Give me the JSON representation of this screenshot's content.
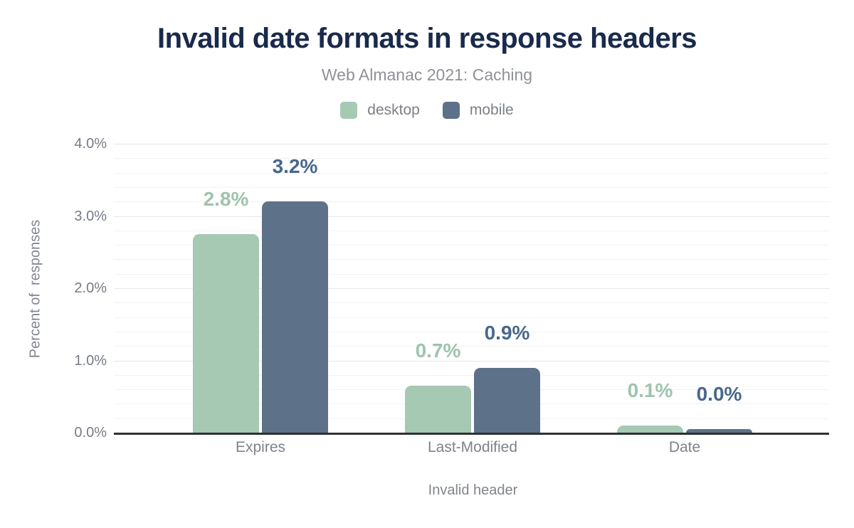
{
  "chart_data": {
    "type": "bar",
    "title": "Invalid date formats in response headers",
    "subtitle": "Web Almanac 2021: Caching",
    "xlabel": "Invalid header",
    "ylabel": "Percent of  responses",
    "categories": [
      "Expires",
      "Last-Modified",
      "Date"
    ],
    "series": [
      {
        "name": "desktop",
        "color": "#a5c9b3",
        "label_color": "#9ec4ad",
        "labels": [
          "2.8%",
          "0.7%",
          "0.1%"
        ],
        "values": [
          2.75,
          0.65,
          0.1
        ]
      },
      {
        "name": "mobile",
        "color": "#5d7189",
        "label_color": "#48688c",
        "labels": [
          "3.2%",
          "0.9%",
          "0.0%"
        ],
        "values": [
          3.2,
          0.9,
          0.05
        ]
      }
    ],
    "ylim": [
      0,
      4.0
    ],
    "yticks": [
      4,
      3,
      2,
      1,
      0
    ],
    "ytick_labels": [
      "4.0%",
      "3.0%",
      "2.0%",
      "1.0%",
      "0.0%"
    ],
    "grid": "horizontal, minor every 0.2%, major every 1.0%",
    "legend_position": "top-center"
  },
  "colors": {
    "background": "#ffffff",
    "title": "#1a2a4c",
    "subtitle": "#8e9196",
    "axis_text": "#767b85",
    "axis_line": "#303030",
    "grid_minor": "#f2f2f2",
    "grid_major": "#e7e7e7",
    "desktop_bar": "#a5c9b3",
    "mobile_bar": "#5d7189"
  }
}
